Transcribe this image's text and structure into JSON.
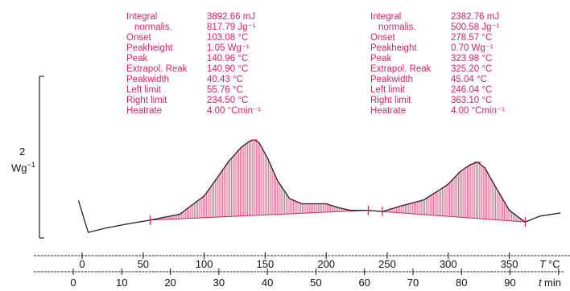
{
  "chart_data": {
    "type": "area",
    "title": "",
    "y_unit_label": {
      "value": "2",
      "unit": "Wg",
      "exponent": "−1"
    },
    "temperature_axis": {
      "label": "T",
      "unit": "°C",
      "ticks": [
        "0",
        "50",
        "100",
        "150",
        "200",
        "250",
        "300",
        "350"
      ]
    },
    "time_axis": {
      "label": "t",
      "unit": "min",
      "ticks": [
        "0",
        "10",
        "20",
        "30",
        "40",
        "50",
        "60",
        "70",
        "80",
        "90"
      ]
    },
    "series": [
      {
        "x_temperature_c": [
          -3,
          5,
          20,
          40,
          56,
          80,
          100,
          110,
          120,
          130,
          137,
          141,
          145,
          152,
          160,
          170,
          180,
          190,
          200,
          210,
          220,
          230,
          234.5,
          246,
          260,
          280,
          300,
          310,
          318,
          324,
          330,
          340,
          350,
          363,
          375,
          392
        ],
        "y_rel": [
          0.55,
          0.06,
          0.13,
          0.2,
          0.25,
          0.34,
          0.62,
          0.88,
          1.15,
          1.36,
          1.46,
          1.48,
          1.44,
          1.2,
          0.86,
          0.58,
          0.5,
          0.5,
          0.5,
          0.44,
          0.4,
          0.4,
          0.4,
          0.38,
          0.46,
          0.56,
          0.8,
          1.0,
          1.1,
          1.14,
          1.05,
          0.72,
          0.4,
          0.22,
          0.31,
          0.36
        ]
      }
    ],
    "peaks": [
      {
        "labels": [
          "Integral",
          "normalis.",
          "Onset",
          "Peakheight",
          "Peak",
          "Extrapol. Reak",
          "Peakwidth",
          "Left limit",
          "Right limit",
          "Heatrate"
        ],
        "values": [
          "3892.66 mJ",
          "817.79 Jg⁻¹",
          "103.08 °C",
          "1.05 Wg⁻¹",
          "140.96 °C",
          "140.90 °C",
          "40.43 °C",
          "55.76 °C",
          "234.50 °C",
          "4.00 °Cmin⁻¹"
        ],
        "left_limit_c": 55.76,
        "right_limit_c": 234.5,
        "peak_c": 140.96
      },
      {
        "labels": [
          "Integral",
          "normalis.",
          "Onset",
          "Peakheight",
          "Peak",
          "Extrapol. Reak",
          "Peakwidth",
          "Left limit",
          "Right limit",
          "Heatrate"
        ],
        "values": [
          "2382.76 mJ",
          "500.58 Jg⁻¹",
          "278.57 °C",
          "0.70 Wg⁻¹",
          "323.98 °C",
          "325.20 °C",
          "45.04 °C",
          "246.04 °C",
          "363.10 °C",
          "4.00 °Cmin⁻¹"
        ],
        "left_limit_c": 246.04,
        "right_limit_c": 363.1,
        "peak_c": 323.98
      }
    ],
    "colors": {
      "fill": "#d6245e",
      "curve": "#222222",
      "text": "#d6245e"
    }
  }
}
